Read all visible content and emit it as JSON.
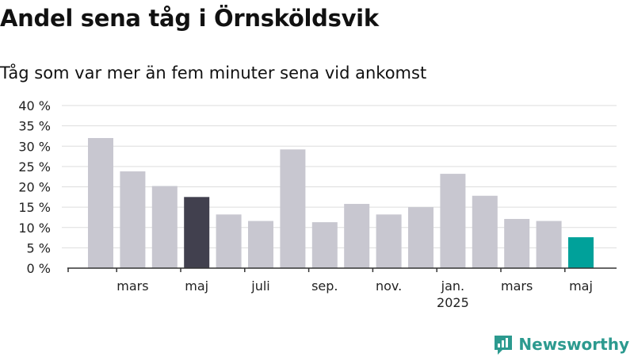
{
  "title": "Andel sena tåg i Örnsköldsvik",
  "subtitle": "Tåg som var mer än fem minuter sena vid ankomst",
  "brand": "Newsworthy",
  "colors": {
    "bar_default": "#c8c7d0",
    "bar_highlight_dark": "#41404e",
    "bar_highlight_accent": "#00a19a",
    "grid": "#dddddd",
    "axis": "#333333",
    "brand": "#2c9a8f"
  },
  "chart_data": {
    "type": "bar",
    "title": "Andel sena tåg i Örnsköldsvik",
    "subtitle": "Tåg som var mer än fem minuter sena vid ankomst",
    "xlabel": "",
    "ylabel": "",
    "ylim": [
      0,
      40
    ],
    "yticks": [
      "0 %",
      "5 %",
      "10 %",
      "15 %",
      "20 %",
      "25 %",
      "30 %",
      "35 %",
      "40 %"
    ],
    "ytick_values": [
      0,
      5,
      10,
      15,
      20,
      25,
      30,
      35,
      40
    ],
    "grid": true,
    "categories": [
      "2024-02",
      "2024-03",
      "2024-04",
      "2024-05",
      "2024-06",
      "2024-07",
      "2024-08",
      "2024-09",
      "2024-10",
      "2024-11",
      "2024-12",
      "2025-01",
      "2025-02",
      "2025-03",
      "2025-04",
      "2025-05"
    ],
    "values": [
      32,
      23.8,
      20.2,
      17.5,
      13.2,
      11.6,
      29.2,
      11.3,
      15.8,
      13.2,
      15,
      23.2,
      17.8,
      12.1,
      11.6,
      7.6
    ],
    "highlight": {
      "2024-05": "bar_highlight_dark",
      "2025-05": "bar_highlight_accent"
    },
    "xtick_labels": [
      {
        "category": "2024-03",
        "label": "mars"
      },
      {
        "category": "2024-05",
        "label": "maj"
      },
      {
        "category": "2024-07",
        "label": "juli"
      },
      {
        "category": "2024-09",
        "label": "sep."
      },
      {
        "category": "2024-11",
        "label": "nov."
      },
      {
        "category": "2025-01",
        "label": "jan.",
        "sublabel": "2025"
      },
      {
        "category": "2025-03",
        "label": "mars"
      },
      {
        "category": "2025-05",
        "label": "maj"
      }
    ]
  }
}
